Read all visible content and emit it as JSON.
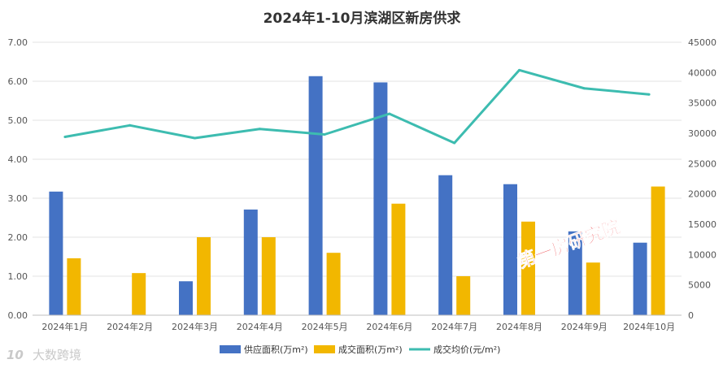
{
  "chart_data": {
    "type": "bar",
    "title": "2024年1-10月滨湖区新房供求",
    "categories": [
      "2024年1月",
      "2024年2月",
      "2024年3月",
      "2024年4月",
      "2024年5月",
      "2024年6月",
      "2024年7月",
      "2024年8月",
      "2024年9月",
      "2024年10月"
    ],
    "series": [
      {
        "name": "供应面积(万m²)",
        "type": "bar",
        "axis": "left",
        "color": "#4472c4",
        "values": [
          3.17,
          0,
          0.87,
          2.71,
          6.13,
          5.97,
          3.59,
          3.36,
          2.15,
          1.86
        ]
      },
      {
        "name": "成交面积(万m²)",
        "type": "bar",
        "axis": "left",
        "color": "#f2b700",
        "values": [
          1.46,
          1.08,
          2.0,
          2.0,
          1.6,
          2.86,
          1.0,
          2.4,
          1.35,
          3.3
        ]
      },
      {
        "name": "成交均价(元/m²)",
        "type": "line",
        "axis": "right",
        "color": "#3dbcb0",
        "values": [
          29400,
          31300,
          29200,
          30700,
          29800,
          33200,
          28400,
          40400,
          37400,
          36400
        ]
      }
    ],
    "y_left": {
      "min": 0,
      "max": 7,
      "step": 1,
      "tick_labels": [
        "0.00",
        "1.00",
        "2.00",
        "3.00",
        "4.00",
        "5.00",
        "6.00",
        "7.00"
      ]
    },
    "y_right": {
      "min": 0,
      "max": 45000,
      "step": 5000,
      "tick_labels": [
        "0",
        "5000",
        "10000",
        "15000",
        "20000",
        "25000",
        "30000",
        "35000",
        "40000",
        "45000"
      ]
    },
    "grid": true,
    "legend_position": "bottom-center"
  },
  "watermark_text": "第一房研究院",
  "logo_text": "大数跨境",
  "logo_mark": "10"
}
